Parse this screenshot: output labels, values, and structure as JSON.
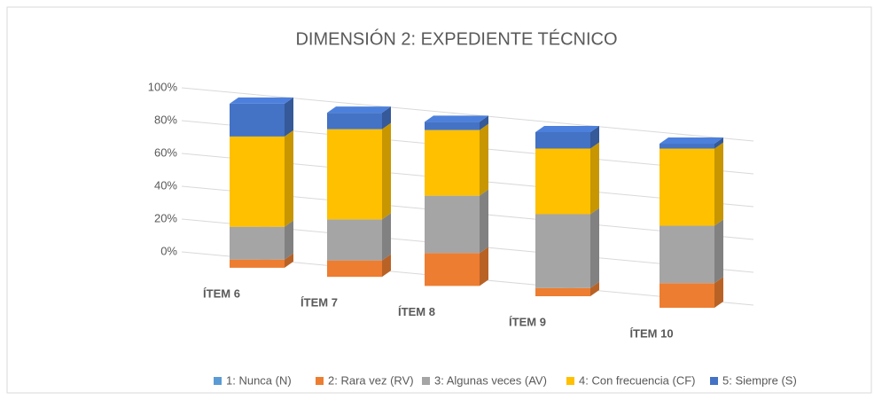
{
  "chart_data": {
    "type": "bar3d_stacked",
    "title": "DIMENSIÓN 2: EXPEDIENTE TÉCNICO",
    "categories": [
      "ÍTEM 6",
      "ÍTEM 7",
      "ÍTEM 8",
      "ÍTEM 9",
      "ÍTEM 10"
    ],
    "series": [
      {
        "name": "1: Nunca (N)",
        "color": "#5b9bd5",
        "values": [
          0,
          0,
          0,
          0,
          0
        ]
      },
      {
        "name": "2: Rara vez (RV)",
        "color": "#ed7d31",
        "values": [
          5,
          10,
          20,
          5,
          15
        ]
      },
      {
        "name": "3: Algunas veces (AV)",
        "color": "#a5a5a5",
        "values": [
          20,
          25,
          35,
          45,
          35
        ]
      },
      {
        "name": "4: Con frecuencia (CF)",
        "color": "#ffc000",
        "values": [
          55,
          55,
          40,
          40,
          47
        ]
      },
      {
        "name": "5: Siempre (S)",
        "color": "#4472c4",
        "values": [
          20,
          10,
          5,
          10,
          3
        ]
      }
    ],
    "ylim": [
      0,
      100
    ],
    "yticks": [
      {
        "value": 0,
        "label": "0%"
      },
      {
        "value": 20,
        "label": "20%"
      },
      {
        "value": 40,
        "label": "40%"
      },
      {
        "value": 60,
        "label": "60%"
      },
      {
        "value": 80,
        "label": "80%"
      },
      {
        "value": 100,
        "label": "100%"
      }
    ],
    "grid": true,
    "legend": "bottom"
  }
}
